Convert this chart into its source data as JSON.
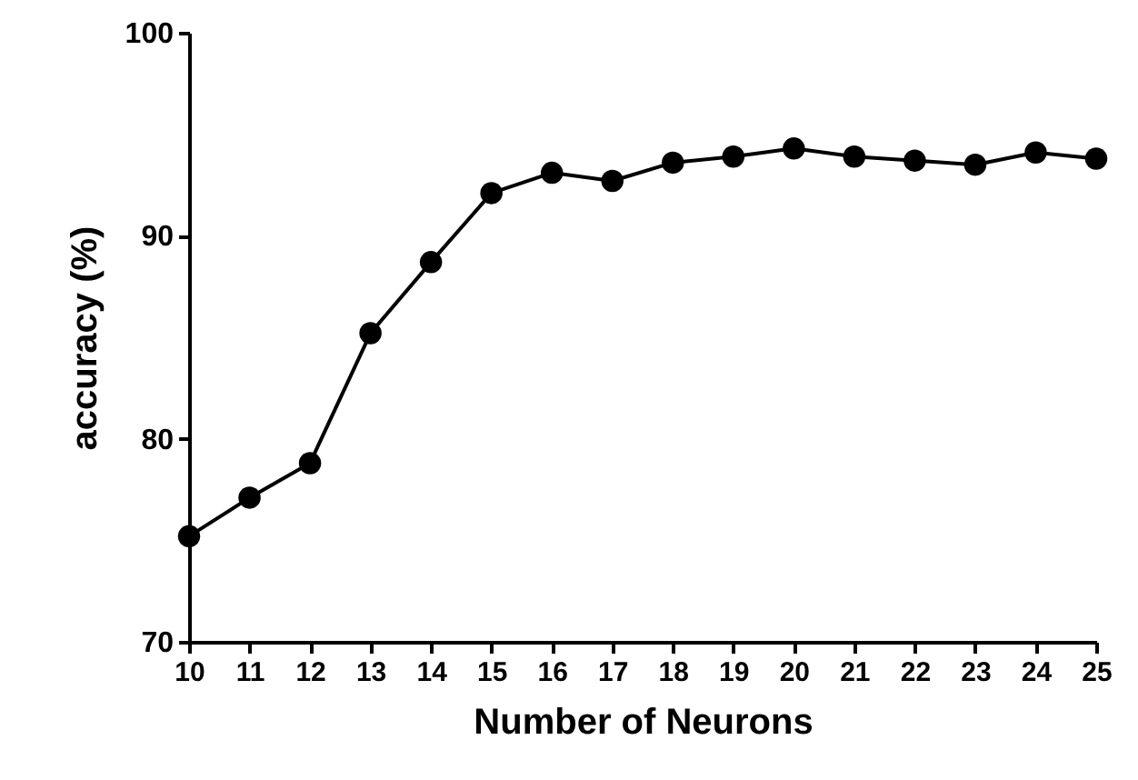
{
  "chart_data": {
    "type": "line",
    "xlabel": "Number of Neurons",
    "ylabel": "accuracy (%)",
    "x": [
      10,
      11,
      12,
      13,
      14,
      15,
      16,
      17,
      18,
      19,
      20,
      21,
      22,
      23,
      24,
      25
    ],
    "series": [
      {
        "color": "#000000",
        "values": [
          75.2,
          77.1,
          78.8,
          85.2,
          88.7,
          92.1,
          93.1,
          92.7,
          93.6,
          93.9,
          94.3,
          93.9,
          93.7,
          93.5,
          94.1,
          93.8
        ]
      }
    ],
    "xlim": [
      10,
      25
    ],
    "xticks": [
      10,
      11,
      12,
      13,
      14,
      15,
      16,
      17,
      18,
      19,
      20,
      21,
      22,
      23,
      24,
      25
    ],
    "ylim": [
      70,
      100
    ],
    "yticks": [
      70,
      80,
      90,
      100
    ],
    "grid": false,
    "marker": "circle",
    "line_style": "solid"
  }
}
